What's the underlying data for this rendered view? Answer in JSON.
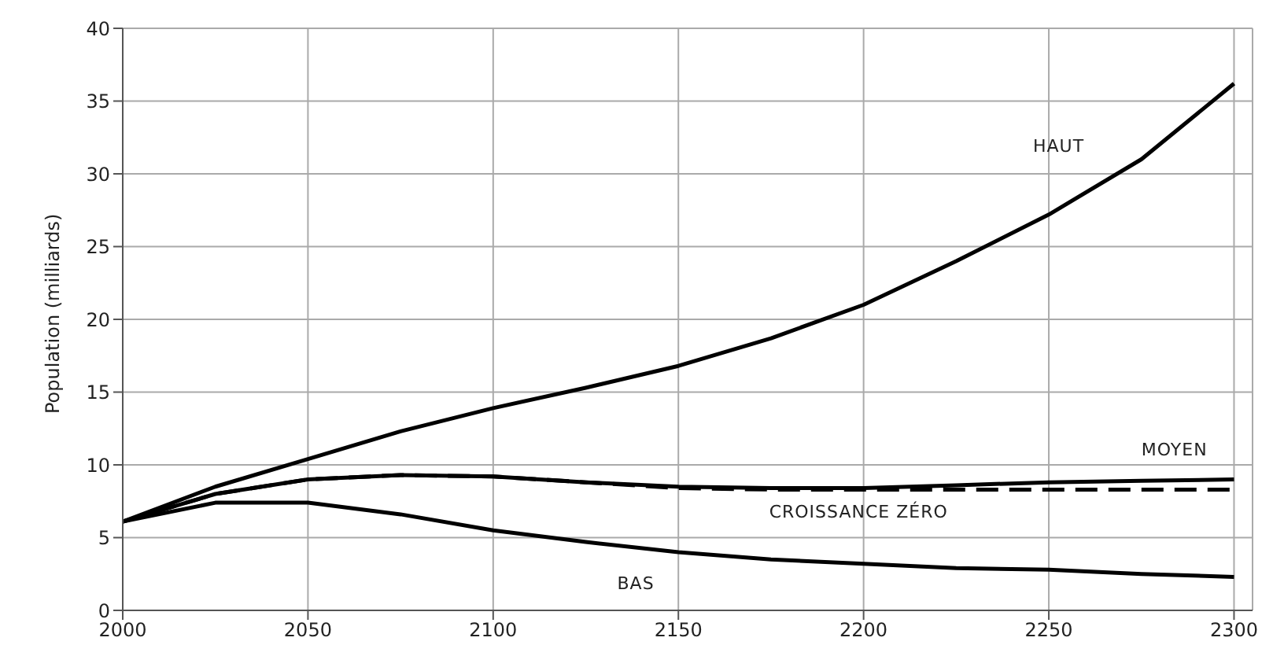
{
  "chart_data": {
    "type": "line",
    "ylabel": "Population (milliards)",
    "x": [
      2000,
      2025,
      2050,
      2075,
      2100,
      2125,
      2150,
      2175,
      2200,
      2225,
      2250,
      2275,
      2300
    ],
    "series": [
      {
        "name": "HAUT",
        "color": "#000000",
        "line_style": "solid",
        "values": [
          6.1,
          8.5,
          10.4,
          12.3,
          13.9,
          15.3,
          16.8,
          18.7,
          21.0,
          24.0,
          27.2,
          31.0,
          36.2
        ]
      },
      {
        "name": "MOYEN",
        "color": "#000000",
        "line_style": "solid",
        "values": [
          6.1,
          8.0,
          9.0,
          9.3,
          9.2,
          8.8,
          8.5,
          8.4,
          8.4,
          8.6,
          8.8,
          8.9,
          9.0
        ]
      },
      {
        "name": "CROISSANCE ZÉRO",
        "color": "#000000",
        "line_style": "dashed",
        "values": [
          6.1,
          8.0,
          9.0,
          9.3,
          9.2,
          8.8,
          8.4,
          8.3,
          8.3,
          8.3,
          8.3,
          8.3,
          8.3
        ]
      },
      {
        "name": "BAS",
        "color": "#000000",
        "line_style": "solid",
        "values": [
          6.1,
          7.4,
          7.4,
          6.6,
          5.5,
          4.7,
          4.0,
          3.5,
          3.2,
          2.9,
          2.8,
          2.5,
          2.3
        ]
      }
    ],
    "xlim": [
      2000,
      2305
    ],
    "xticks": [
      2000,
      2050,
      2100,
      2150,
      2200,
      2250,
      2300
    ],
    "ylim": [
      0,
      40
    ],
    "yticks": [
      0,
      5,
      10,
      15,
      20,
      25,
      30,
      35,
      40
    ],
    "grid": true,
    "marker": "none",
    "legend": false
  }
}
